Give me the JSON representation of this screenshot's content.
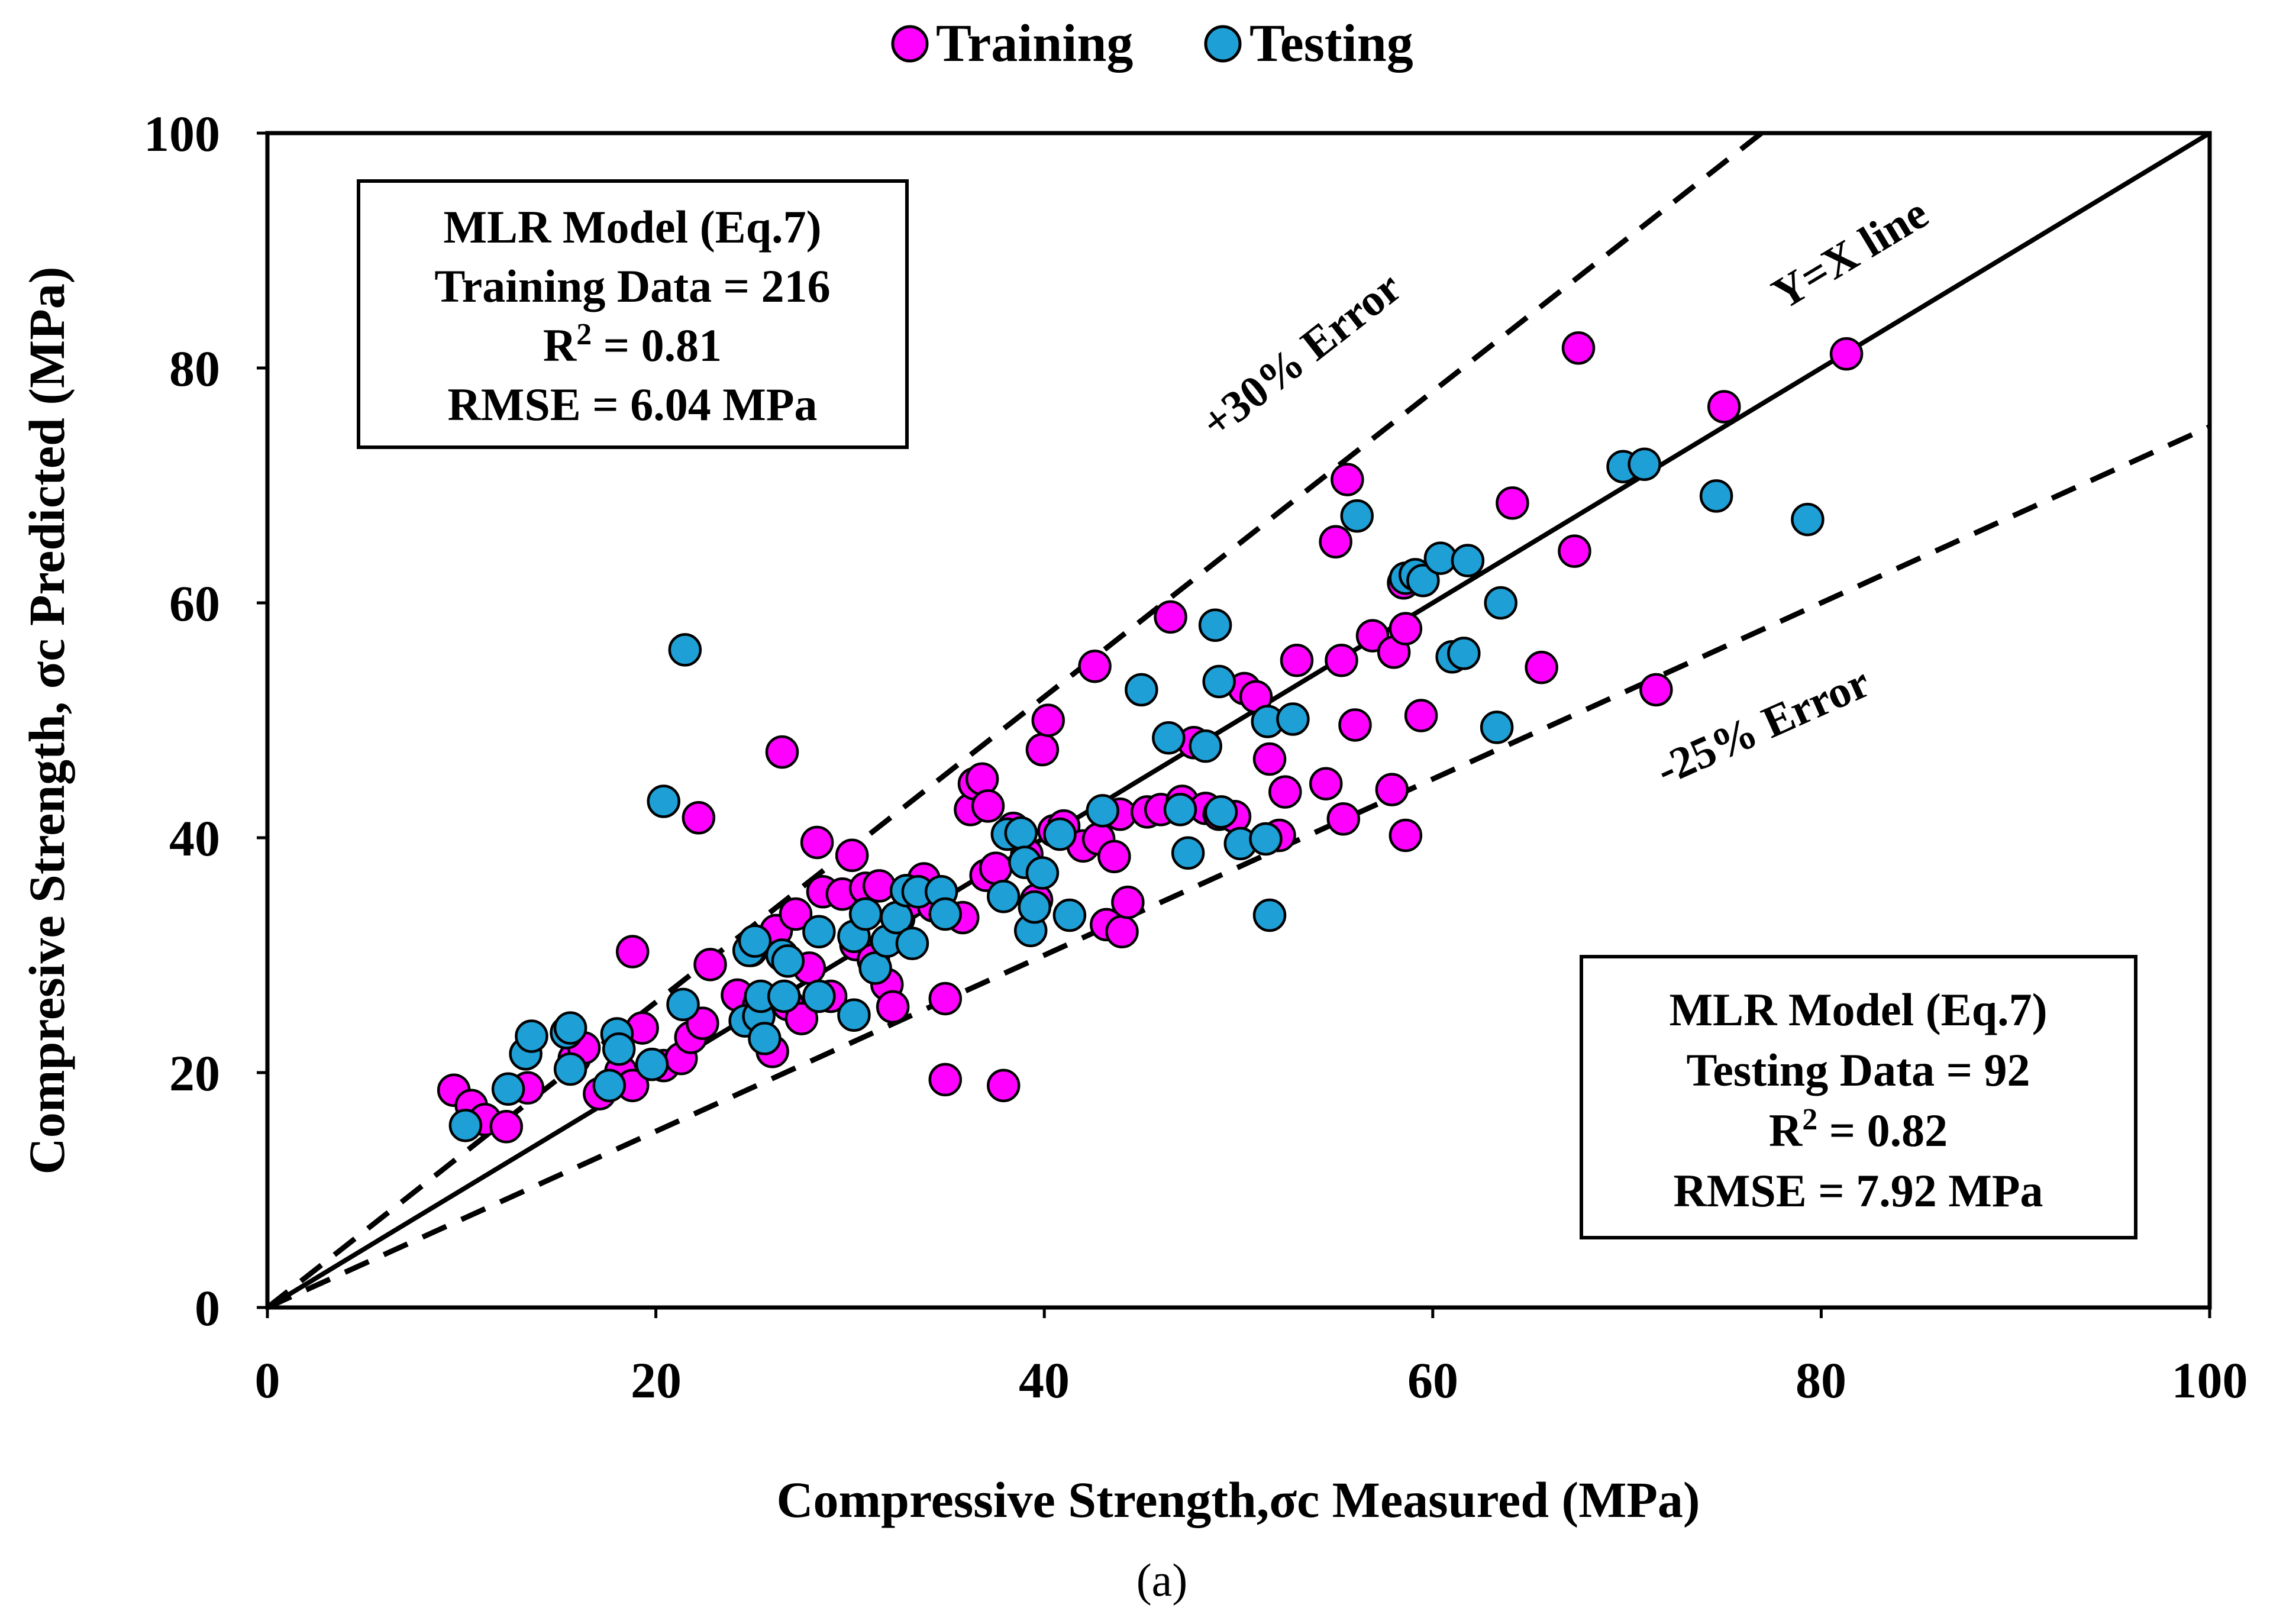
{
  "chart_data": {
    "type": "scatter",
    "xlabel": "Compressive Strength,σc Measured (MPa)",
    "ylabel": "Compresive Strength, σc Predicted (MPa)",
    "xlim": [
      0,
      100
    ],
    "ylim": [
      0,
      100
    ],
    "x_ticks": [
      "0",
      "20",
      "40",
      "60",
      "80",
      "100"
    ],
    "y_ticks": [
      "0",
      "20",
      "40",
      "60",
      "80",
      "100"
    ],
    "legend_position": "top-center",
    "legend": [
      {
        "name": "Training",
        "color": "#ff00ff"
      },
      {
        "name": "Testing",
        "color": "#1e9fd6"
      }
    ],
    "reference_lines": [
      {
        "label": "Y=X line",
        "slope": 1.0,
        "style": "solid"
      },
      {
        "label": "+30% Error",
        "slope": 1.3,
        "style": "dashed"
      },
      {
        "label": "-25% Error",
        "slope": 0.75,
        "style": "dashed"
      }
    ],
    "annotations": {
      "training_box": [
        "MLR Model (Eq.7)",
        "Training Data = 216",
        "R2 =  0.81",
        "RMSE =  6.04 MPa"
      ],
      "testing_box": [
        "MLR Model (Eq.7)",
        "Testing Data = 92",
        "R2 = 0.82",
        "RMSE = 7.92 MPa"
      ]
    },
    "caption": "(a)",
    "series": [
      {
        "name": "Training",
        "color": "#ff00ff",
        "points": [
          [
            9.6,
            18.5
          ],
          [
            10.5,
            17.2
          ],
          [
            11.2,
            16.0
          ],
          [
            12.3,
            15.4
          ],
          [
            13.4,
            18.7
          ],
          [
            15.8,
            21.2
          ],
          [
            16.3,
            22.1
          ],
          [
            17.1,
            18.2
          ],
          [
            18.2,
            20.1
          ],
          [
            18.8,
            18.9
          ],
          [
            18.8,
            30.3
          ],
          [
            19.3,
            23.8
          ],
          [
            20.4,
            20.6
          ],
          [
            21.3,
            21.2
          ],
          [
            21.8,
            23.0
          ],
          [
            22.2,
            41.7
          ],
          [
            22.4,
            24.2
          ],
          [
            22.8,
            29.2
          ],
          [
            24.2,
            26.6
          ],
          [
            24.9,
            30.4
          ],
          [
            25.3,
            25.8
          ],
          [
            26.0,
            21.8
          ],
          [
            26.2,
            32.1
          ],
          [
            26.5,
            47.3
          ],
          [
            26.8,
            25.8
          ],
          [
            27.2,
            33.5
          ],
          [
            27.5,
            24.6
          ],
          [
            27.9,
            28.9
          ],
          [
            28.3,
            39.6
          ],
          [
            28.6,
            35.4
          ],
          [
            29.0,
            26.5
          ],
          [
            29.6,
            35.2
          ],
          [
            30.1,
            38.5
          ],
          [
            30.3,
            30.9
          ],
          [
            30.8,
            35.7
          ],
          [
            31.2,
            29.6
          ],
          [
            31.5,
            35.9
          ],
          [
            31.9,
            27.5
          ],
          [
            32.2,
            25.6
          ],
          [
            32.5,
            33.1
          ],
          [
            33.1,
            34.6
          ],
          [
            33.8,
            36.5
          ],
          [
            34.3,
            34.2
          ],
          [
            34.9,
            26.3
          ],
          [
            34.9,
            19.4
          ],
          [
            35.8,
            33.2
          ],
          [
            36.2,
            42.4
          ],
          [
            36.4,
            44.6
          ],
          [
            36.8,
            45.0
          ],
          [
            37.1,
            42.7
          ],
          [
            37.0,
            36.8
          ],
          [
            37.5,
            37.4
          ],
          [
            37.9,
            18.9
          ],
          [
            38.4,
            40.8
          ],
          [
            39.1,
            38.6
          ],
          [
            39.6,
            34.7
          ],
          [
            39.9,
            47.5
          ],
          [
            40.2,
            50.0
          ],
          [
            40.5,
            40.6
          ],
          [
            41.0,
            41.0
          ],
          [
            42.0,
            39.3
          ],
          [
            42.6,
            54.6
          ],
          [
            42.8,
            39.9
          ],
          [
            43.2,
            32.6
          ],
          [
            43.6,
            38.4
          ],
          [
            44.0,
            32.0
          ],
          [
            43.9,
            42.0
          ],
          [
            44.3,
            34.5
          ],
          [
            45.3,
            42.2
          ],
          [
            46.0,
            42.4
          ],
          [
            46.5,
            58.8
          ],
          [
            47.1,
            43.1
          ],
          [
            47.7,
            48.1
          ],
          [
            48.3,
            42.5
          ],
          [
            49.0,
            42.0
          ],
          [
            49.8,
            41.8
          ],
          [
            50.3,
            52.7
          ],
          [
            50.9,
            52.0
          ],
          [
            51.6,
            46.7
          ],
          [
            52.1,
            40.2
          ],
          [
            52.4,
            43.9
          ],
          [
            53.0,
            55.1
          ],
          [
            54.5,
            44.6
          ],
          [
            55.0,
            65.2
          ],
          [
            55.3,
            55.1
          ],
          [
            55.4,
            41.6
          ],
          [
            55.6,
            70.5
          ],
          [
            56.0,
            49.6
          ],
          [
            56.9,
            57.2
          ],
          [
            57.9,
            44.1
          ],
          [
            58.0,
            55.8
          ],
          [
            58.5,
            61.7
          ],
          [
            58.6,
            57.8
          ],
          [
            58.6,
            40.2
          ],
          [
            59.4,
            50.4
          ],
          [
            64.1,
            68.5
          ],
          [
            65.6,
            54.5
          ],
          [
            67.3,
            64.4
          ],
          [
            67.5,
            81.7
          ],
          [
            71.5,
            52.6
          ],
          [
            75.0,
            76.7
          ],
          [
            81.3,
            81.2
          ]
        ]
      },
      {
        "name": "Testing",
        "color": "#1e9fd6",
        "points": [
          [
            10.2,
            15.5
          ],
          [
            12.4,
            18.6
          ],
          [
            13.3,
            21.6
          ],
          [
            13.6,
            23.1
          ],
          [
            15.4,
            23.4
          ],
          [
            15.6,
            23.8
          ],
          [
            15.6,
            20.3
          ],
          [
            17.6,
            18.9
          ],
          [
            18.0,
            23.3
          ],
          [
            18.1,
            22.0
          ],
          [
            19.8,
            20.7
          ],
          [
            20.4,
            43.1
          ],
          [
            21.4,
            25.8
          ],
          [
            21.5,
            56.0
          ],
          [
            24.6,
            24.4
          ],
          [
            24.8,
            30.4
          ],
          [
            25.1,
            31.2
          ],
          [
            25.3,
            24.8
          ],
          [
            25.4,
            26.5
          ],
          [
            25.6,
            22.9
          ],
          [
            26.5,
            30.0
          ],
          [
            26.6,
            26.5
          ],
          [
            26.8,
            29.5
          ],
          [
            28.4,
            32.0
          ],
          [
            28.4,
            26.5
          ],
          [
            30.2,
            24.9
          ],
          [
            30.2,
            31.6
          ],
          [
            30.8,
            33.5
          ],
          [
            31.3,
            28.9
          ],
          [
            31.9,
            31.2
          ],
          [
            32.4,
            33.2
          ],
          [
            32.9,
            35.5
          ],
          [
            33.2,
            31.0
          ],
          [
            33.5,
            35.4
          ],
          [
            34.7,
            35.4
          ],
          [
            34.9,
            33.5
          ],
          [
            37.9,
            35.0
          ],
          [
            38.1,
            40.3
          ],
          [
            38.8,
            40.4
          ],
          [
            39.0,
            37.9
          ],
          [
            39.3,
            32.1
          ],
          [
            39.5,
            34.1
          ],
          [
            39.9,
            37.0
          ],
          [
            40.8,
            40.3
          ],
          [
            41.3,
            33.4
          ],
          [
            43.0,
            42.3
          ],
          [
            45.0,
            52.6
          ],
          [
            46.4,
            48.5
          ],
          [
            47.0,
            42.4
          ],
          [
            47.4,
            38.7
          ],
          [
            48.3,
            47.8
          ],
          [
            48.8,
            58.1
          ],
          [
            49.0,
            53.3
          ],
          [
            49.1,
            42.2
          ],
          [
            50.1,
            39.5
          ],
          [
            51.4,
            39.9
          ],
          [
            51.6,
            33.4
          ],
          [
            51.5,
            49.9
          ],
          [
            52.8,
            50.1
          ],
          [
            58.6,
            62.1
          ],
          [
            59.1,
            62.4
          ],
          [
            59.5,
            61.9
          ],
          [
            60.4,
            63.8
          ],
          [
            61.0,
            55.4
          ],
          [
            61.6,
            55.7
          ],
          [
            61.8,
            63.6
          ],
          [
            63.3,
            49.4
          ],
          [
            63.5,
            60.0
          ],
          [
            69.8,
            71.6
          ],
          [
            70.9,
            71.8
          ],
          [
            74.6,
            69.1
          ],
          [
            79.3,
            67.1
          ],
          [
            56.1,
            67.4
          ]
        ]
      }
    ]
  }
}
